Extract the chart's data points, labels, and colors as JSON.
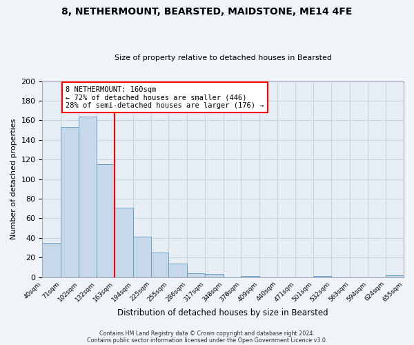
{
  "title": "8, NETHERMOUNT, BEARSTED, MAIDSTONE, ME14 4FE",
  "subtitle": "Size of property relative to detached houses in Bearsted",
  "xlabel": "Distribution of detached houses by size in Bearsted",
  "ylabel": "Number of detached properties",
  "bin_edges": [
    40,
    71,
    102,
    132,
    163,
    194,
    225,
    255,
    286,
    317,
    348,
    378,
    409,
    440,
    471,
    501,
    532,
    563,
    594,
    624,
    655
  ],
  "bin_heights": [
    35,
    153,
    164,
    115,
    71,
    41,
    25,
    14,
    4,
    3,
    0,
    1,
    0,
    0,
    0,
    1,
    0,
    0,
    0,
    2
  ],
  "tick_labels": [
    "40sqm",
    "71sqm",
    "102sqm",
    "132sqm",
    "163sqm",
    "194sqm",
    "225sqm",
    "255sqm",
    "286sqm",
    "317sqm",
    "348sqm",
    "378sqm",
    "409sqm",
    "440sqm",
    "471sqm",
    "501sqm",
    "532sqm",
    "563sqm",
    "594sqm",
    "624sqm",
    "655sqm"
  ],
  "bar_color": "#c8d8eb",
  "bar_edge_color": "#6a9fc0",
  "grid_color": "#c8d4e0",
  "background_color": "#e8eef5",
  "fig_background_color": "#f0f4f8",
  "vline_x": 163,
  "vline_color": "red",
  "annotation_text": "8 NETHERMOUNT: 160sqm\n← 72% of detached houses are smaller (446)\n28% of semi-detached houses are larger (176) →",
  "annotation_box_color": "white",
  "annotation_box_edge": "red",
  "ylim": [
    0,
    200
  ],
  "yticks": [
    0,
    20,
    40,
    60,
    80,
    100,
    120,
    140,
    160,
    180,
    200
  ],
  "footer_line1": "Contains HM Land Registry data © Crown copyright and database right 2024.",
  "footer_line2": "Contains public sector information licensed under the Open Government Licence v3.0."
}
